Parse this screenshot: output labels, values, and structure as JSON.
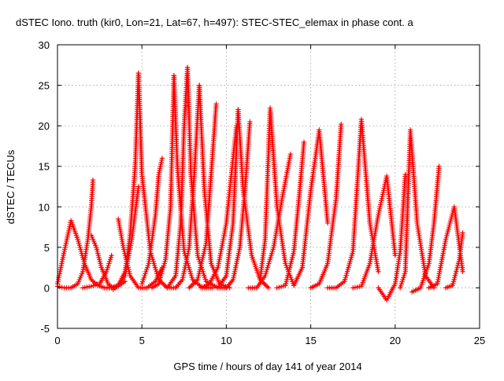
{
  "chart_data": {
    "type": "scatter",
    "title": "dSTEC Iono. truth (kir0, Lon=21, Lat=67, h=497): STEC-STEC_elemax in phase cont. a",
    "xlabel": "GPS time / hours of day 141 of year 2014",
    "ylabel": "dSTEC  / TECUs",
    "xlim": [
      0,
      25
    ],
    "ylim": [
      -5,
      30
    ],
    "xticks": [
      "0",
      "5",
      "10",
      "15",
      "20",
      "25"
    ],
    "yticks": [
      "-5",
      "0",
      "5",
      "10",
      "15",
      "20",
      "25",
      "30"
    ],
    "grid": true,
    "marker": "+",
    "color": "#ff0000",
    "series": [
      {
        "x": [
          0.0,
          0.4,
          0.8,
          1.2,
          1.6,
          2.0,
          2.4,
          2.8,
          3.2,
          3.6,
          4.0
        ],
        "y": [
          0.5,
          4.5,
          8.3,
          6.0,
          3.0,
          1.0,
          0.3,
          0.0,
          0.0,
          0.2,
          0.8
        ]
      },
      {
        "x": [
          0.0,
          0.4,
          0.8,
          1.2,
          1.5,
          1.8,
          2.0,
          2.1
        ],
        "y": [
          0.2,
          0.0,
          0.0,
          0.5,
          2.0,
          6.0,
          10.0,
          13.3
        ]
      },
      {
        "x": [
          2.0,
          2.3,
          2.6,
          3.0,
          3.3
        ],
        "y": [
          6.5,
          5.0,
          2.5,
          0.5,
          0.0
        ]
      },
      {
        "x": [
          1.5,
          2.0,
          2.5,
          2.9,
          3.2
        ],
        "y": [
          0.0,
          0.2,
          0.5,
          2.0,
          4.0
        ]
      },
      {
        "x": [
          2.8,
          3.2,
          3.6,
          4.0,
          4.4,
          4.8
        ],
        "y": [
          0.0,
          0.0,
          0.3,
          1.5,
          6.0,
          12.5
        ]
      },
      {
        "x": [
          3.6,
          3.9,
          4.3,
          4.8,
          5.3,
          5.8,
          6.2
        ],
        "y": [
          8.5,
          5.0,
          1.5,
          0.0,
          0.0,
          0.8,
          2.5
        ]
      },
      {
        "x": [
          3.3,
          3.6,
          4.0,
          4.3,
          4.6,
          4.8
        ],
        "y": [
          -0.2,
          0.3,
          2.0,
          6.5,
          15.0,
          26.5
        ]
      },
      {
        "x": [
          4.8,
          5.0,
          5.5,
          6.0,
          6.5,
          7.0
        ],
        "y": [
          26.5,
          14.0,
          4.5,
          1.0,
          0.0,
          0.0
        ]
      },
      {
        "x": [
          5.0,
          5.4,
          5.8,
          6.0,
          6.2
        ],
        "y": [
          0.5,
          3.0,
          9.0,
          14.0,
          16.0
        ]
      },
      {
        "x": [
          5.6,
          6.0,
          6.4,
          6.7,
          6.9
        ],
        "y": [
          0.0,
          0.5,
          3.5,
          10.0,
          26.2
        ]
      },
      {
        "x": [
          6.9,
          7.1,
          7.5,
          8.0,
          8.6,
          9.2
        ],
        "y": [
          26.2,
          15.0,
          4.5,
          1.0,
          0.0,
          0.0
        ]
      },
      {
        "x": [
          6.5,
          7.0,
          7.3,
          7.5,
          7.7
        ],
        "y": [
          0.0,
          1.5,
          8.0,
          20.0,
          27.2
        ]
      },
      {
        "x": [
          7.7,
          7.9,
          8.3,
          8.8,
          9.5,
          10.0
        ],
        "y": [
          27.2,
          14.0,
          4.0,
          0.8,
          0.0,
          0.0
        ]
      },
      {
        "x": [
          7.0,
          7.4,
          7.8,
          8.1,
          8.4
        ],
        "y": [
          0.0,
          1.0,
          5.0,
          14.0,
          25.0
        ]
      },
      {
        "x": [
          8.4,
          8.7,
          9.1,
          9.6,
          10.2
        ],
        "y": [
          25.0,
          12.0,
          3.0,
          0.5,
          0.0
        ]
      },
      {
        "x": [
          7.8,
          8.3,
          8.8,
          9.1,
          9.4
        ],
        "y": [
          0.0,
          1.0,
          5.5,
          14.0,
          22.7
        ]
      },
      {
        "x": [
          8.5,
          9.0,
          9.5,
          10.0,
          10.3,
          10.6
        ],
        "y": [
          0.0,
          0.5,
          2.5,
          8.0,
          14.0,
          20.0
        ]
      },
      {
        "x": [
          9.5,
          10.0,
          10.4,
          10.7
        ],
        "y": [
          0.0,
          1.5,
          8.0,
          22.0
        ]
      },
      {
        "x": [
          10.7,
          11.0,
          11.5,
          12.0,
          12.5
        ],
        "y": [
          22.0,
          12.0,
          4.0,
          1.0,
          0.0
        ]
      },
      {
        "x": [
          10.0,
          10.4,
          10.8,
          11.1,
          11.4
        ],
        "y": [
          0.0,
          1.0,
          5.0,
          12.0,
          20.5
        ]
      },
      {
        "x": [
          11.3,
          11.8,
          12.3,
          12.8,
          13.3,
          13.8
        ],
        "y": [
          0.0,
          0.0,
          1.5,
          5.0,
          11.0,
          16.5
        ]
      },
      {
        "x": [
          12.0,
          12.3,
          12.6,
          13.0,
          13.5,
          14.0
        ],
        "y": [
          1.0,
          6.0,
          22.2,
          10.0,
          3.0,
          0.3
        ]
      },
      {
        "x": [
          13.0,
          13.5,
          14.0,
          14.3,
          14.6
        ],
        "y": [
          0.0,
          0.3,
          4.5,
          11.0,
          18.0
        ]
      },
      {
        "x": [
          14.0,
          14.5,
          15.0,
          15.5,
          16.0
        ],
        "y": [
          0.3,
          2.5,
          12.0,
          19.5,
          8.0
        ]
      },
      {
        "x": [
          15.0,
          15.5,
          16.0,
          16.5,
          16.8
        ],
        "y": [
          0.0,
          0.5,
          3.0,
          11.0,
          20.2
        ]
      },
      {
        "x": [
          16.0,
          16.5,
          17.0,
          17.5,
          18.0,
          18.5,
          19.0
        ],
        "y": [
          0.0,
          0.0,
          0.8,
          4.5,
          20.8,
          8.0,
          2.0
        ]
      },
      {
        "x": [
          17.5,
          18.0,
          18.5,
          19.0,
          19.5,
          20.0
        ],
        "y": [
          0.0,
          0.2,
          3.0,
          9.0,
          13.8,
          4.0
        ]
      },
      {
        "x": [
          19.0,
          19.5,
          20.0,
          20.3,
          20.6
        ],
        "y": [
          0.0,
          -1.5,
          0.5,
          4.5,
          14.0
        ]
      },
      {
        "x": [
          20.3,
          20.6,
          20.9,
          21.3,
          21.8,
          22.3
        ],
        "y": [
          0.0,
          2.0,
          19.5,
          8.0,
          1.5,
          0.0
        ]
      },
      {
        "x": [
          21.0,
          21.5,
          22.0,
          22.3,
          22.6
        ],
        "y": [
          -0.5,
          0.0,
          3.0,
          8.0,
          15.0
        ]
      },
      {
        "x": [
          22.0,
          22.5,
          23.0,
          23.5,
          24.0
        ],
        "y": [
          0.0,
          0.5,
          6.0,
          10.0,
          2.0
        ]
      },
      {
        "x": [
          23.0,
          23.4,
          23.8,
          24.0
        ],
        "y": [
          0.0,
          0.3,
          3.5,
          6.8
        ]
      }
    ]
  }
}
